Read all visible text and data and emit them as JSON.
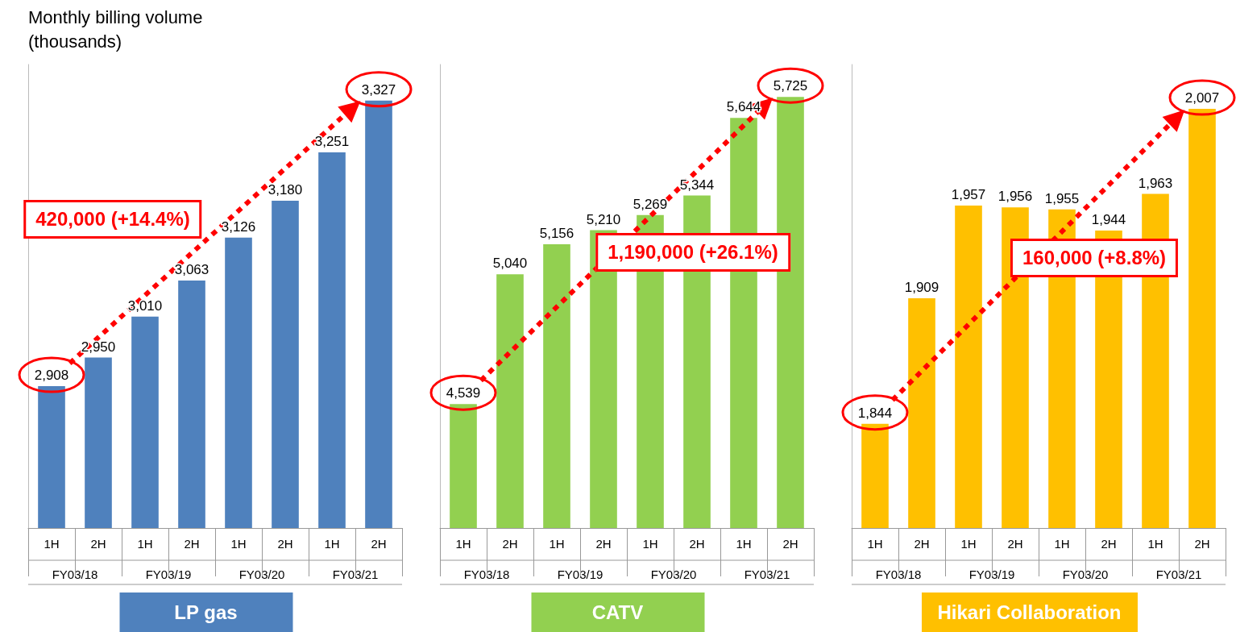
{
  "chart_data": [
    {
      "type": "bar",
      "title": "LP gas",
      "ylabel": "Monthly billing volume\n(thousands)",
      "categories": [
        "1H",
        "2H",
        "1H",
        "2H",
        "1H",
        "2H",
        "1H",
        "2H"
      ],
      "values": [
        2908,
        2950,
        3010,
        3063,
        3126,
        3180,
        3251,
        3327
      ],
      "value_labels": [
        "2,908",
        "2,950",
        "3,010",
        "3,063",
        "3,126",
        "3,180",
        "3,251",
        "3,327"
      ],
      "color": "#4f81bd",
      "ylim": [
        2700,
        3380
      ],
      "tick_labels": "x",
      "annotations": [
        "420,000 (+14.4%)",
        "FY03/18",
        "FY03/19",
        "FY03/20",
        "FY03/21"
      ]
    },
    {
      "type": "bar",
      "title": "CATV",
      "categories": [
        "1H",
        "2H",
        "1H",
        "2H",
        "1H",
        "2H",
        "1H",
        "2H"
      ],
      "values": [
        4539,
        5040,
        5156,
        5210,
        5269,
        5344,
        5644,
        5725
      ],
      "value_labels": [
        "4,539",
        "5,040",
        "5,156",
        "5,210",
        "5,269",
        "5,344",
        "5,644",
        "5,725"
      ],
      "color": "#92d050",
      "ylim": [
        4060,
        5850
      ],
      "tick_labels": "x",
      "annotations": [
        "1,190,000 (+26.1%)",
        "FY03/18",
        "FY03/19",
        "FY03/20",
        "FY03/21"
      ]
    },
    {
      "type": "bar",
      "title": "Hikari Collaboration",
      "categories": [
        "1H",
        "2H",
        "1H",
        "2H",
        "1H",
        "2H",
        "1H",
        "2H"
      ],
      "values": [
        1844,
        1909,
        1957,
        1956,
        1955,
        1944,
        1963,
        2007
      ],
      "value_labels": [
        "1,844",
        "1,909",
        "1,957",
        "1,956",
        "1,955",
        "1,944",
        "1,963",
        "2,007"
      ],
      "color": "#ffc000",
      "ylim": [
        1790,
        2030
      ],
      "tick_labels": "x",
      "annotations": [
        "160,000 (+8.8%)",
        "FY03/18",
        "FY03/19",
        "FY03/20",
        "FY03/21"
      ]
    }
  ]
}
